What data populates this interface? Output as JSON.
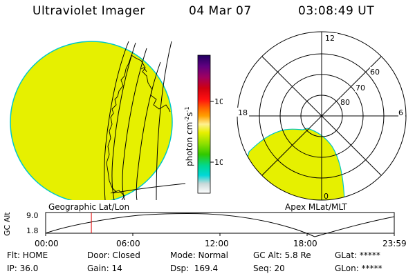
{
  "header": {
    "instrument": "Ultraviolet Imager",
    "date": "04 Mar 07",
    "time": "03:08:49 UT"
  },
  "colorbar": {
    "unit": "photon cm",
    "unit_exp1": "-2",
    "unit_s": "s",
    "unit_exp2": "-1",
    "ticks": [
      "100",
      "10"
    ],
    "stops": [
      "#ffffff",
      "#c8d8d8",
      "#00d8d8",
      "#00d890",
      "#30c800",
      "#90e000",
      "#e8f000",
      "#fff090",
      "#ffa000",
      "#ff6000",
      "#ff1010",
      "#d00010",
      "#a00060",
      "#600080",
      "#200060"
    ]
  },
  "geo_panel": {
    "caption": "Geographic Lat/Lon",
    "fill_color": "#e6f000",
    "edge_color": "#00c8c8"
  },
  "polar_panel": {
    "caption": "Apex MLat/MLT",
    "mlt_labels": {
      "top": "12",
      "left": "18",
      "right": "6",
      "bottom": "0"
    },
    "lat_labels": [
      "60",
      "70",
      "80"
    ]
  },
  "altitude_plot": {
    "axis_label": "GC Alt",
    "y_ticks": [
      "9.0",
      "1.8"
    ],
    "x_ticks": [
      "00:00",
      "06:00",
      "12:00",
      "18:00",
      "23:59"
    ],
    "current_time_hours": 3.147,
    "marker_color": "#e00000"
  },
  "status": {
    "flt": "Flt: HOME",
    "ip": "IP: 36.0",
    "door": "Door: Closed",
    "gain": "Gain: 14",
    "mode": "Mode: Normal",
    "dsp": "Dsp:  169.4",
    "gc_alt": "GC Alt: 5.8 Re",
    "seq": "Seq: 20",
    "glat": "GLat: *****",
    "glon": "GLon: *****"
  }
}
